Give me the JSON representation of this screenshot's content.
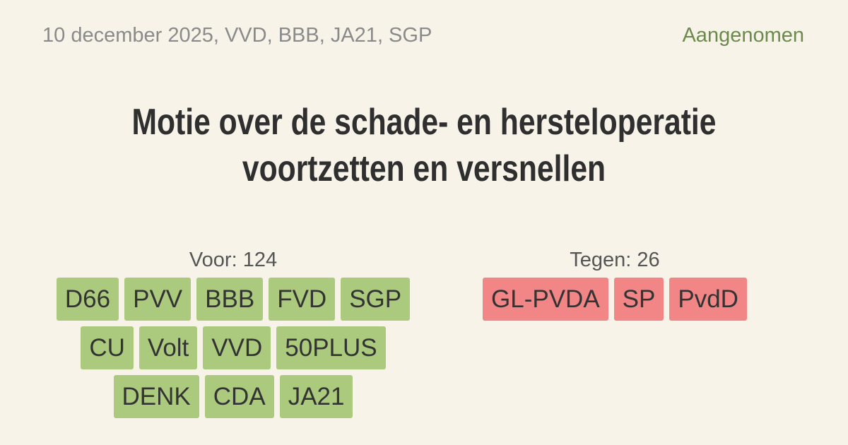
{
  "header": {
    "meta": "10 december 2025, VVD, BBB, JA21, SGP",
    "status": "Aangenomen"
  },
  "title": "Motie over de schade- en hersteloperatie voortzetten en versnellen",
  "votes": {
    "for": {
      "label": "Voor: 124",
      "parties": [
        "D66",
        "PVV",
        "BBB",
        "FVD",
        "SGP",
        "CU",
        "Volt",
        "VVD",
        "50PLUS",
        "DENK",
        "CDA",
        "JA21"
      ]
    },
    "against": {
      "label": "Tegen: 26",
      "parties": [
        "GL-PVDA",
        "SP",
        "PvdD"
      ]
    }
  }
}
